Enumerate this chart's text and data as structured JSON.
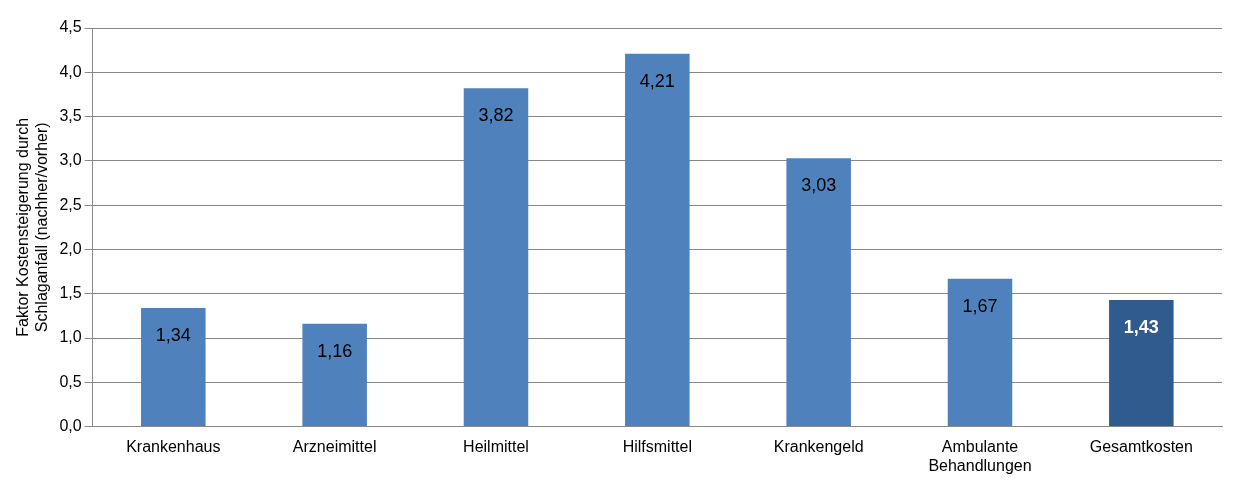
{
  "chart_data": {
    "type": "bar",
    "ylabel": "Faktor Kostensteigerung durch Schlaganfall (nachher/vorher)",
    "categories": [
      "Krankenhaus",
      "Arzneimittel",
      "Heilmittel",
      "Hilfsmittel",
      "Krankengeld",
      "Ambulante Behandlungen",
      "Gesamtkosten"
    ],
    "values": [
      1.34,
      1.16,
      3.82,
      4.21,
      3.03,
      1.67,
      1.43
    ],
    "colors": [
      "#4f81bd",
      "#4f81bd",
      "#4f81bd",
      "#4f81bd",
      "#4f81bd",
      "#4f81bd",
      "#2f5b8f"
    ],
    "value_labels": [
      "1,34",
      "1,16",
      "3,82",
      "4,21",
      "3,03",
      "1,67",
      "1,43"
    ],
    "ylim": [
      0,
      4.5
    ],
    "yticks": [
      {
        "value": 0,
        "label": "0,0"
      },
      {
        "value": 0.5,
        "label": "0,5"
      },
      {
        "value": 1,
        "label": "1,0"
      },
      {
        "value": 1.5,
        "label": "1,5"
      },
      {
        "value": 2,
        "label": "2,0"
      },
      {
        "value": 2.5,
        "label": "2,5"
      },
      {
        "value": 3,
        "label": "3,0"
      },
      {
        "value": 3.5,
        "label": "3,5"
      },
      {
        "value": 4,
        "label": "4,0"
      },
      {
        "value": 4.5,
        "label": "4,5"
      }
    ],
    "grid": "y",
    "legend": false
  }
}
